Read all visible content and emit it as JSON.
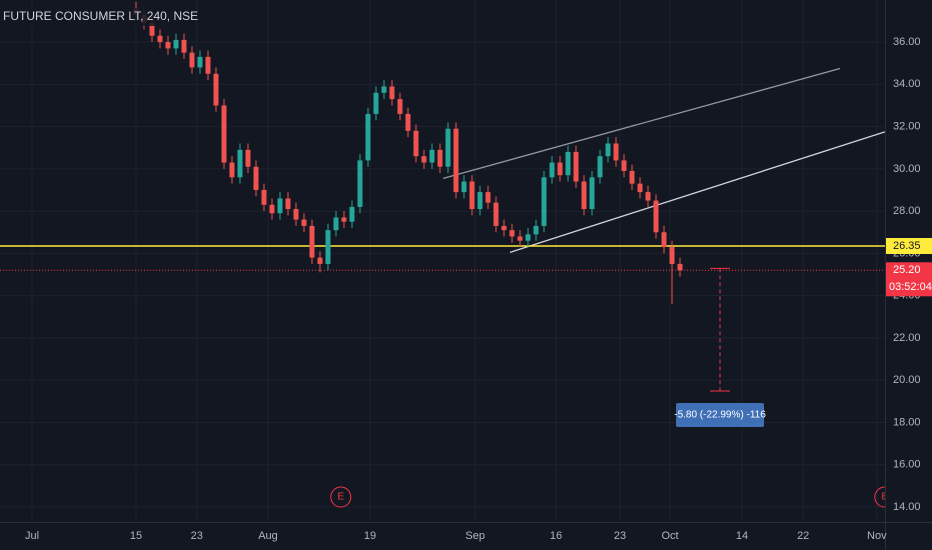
{
  "chart_data": {
    "type": "candlestick",
    "title": "FUTURE CONSUMER LT, 240, NSE",
    "x": [
      17,
      18,
      19,
      20,
      21,
      22,
      23,
      24,
      25,
      26,
      27,
      28,
      29,
      30,
      31,
      32,
      33,
      34,
      35,
      36,
      37,
      38,
      39,
      40,
      41,
      42,
      43,
      44,
      45,
      46,
      47,
      48,
      49,
      50,
      51,
      52,
      53,
      54,
      55,
      56,
      57,
      58,
      59,
      60,
      61,
      62,
      63,
      64,
      65,
      66,
      67,
      68,
      69,
      70,
      71,
      72,
      73,
      74,
      75,
      76,
      77,
      78,
      79,
      80,
      81,
      82,
      83,
      84,
      85
    ],
    "open": [
      37.6,
      37.3,
      36.9,
      36.3,
      36.0,
      35.7,
      36.1,
      35.5,
      34.8,
      35.3,
      34.5,
      33.0,
      30.3,
      29.6,
      30.9,
      30.1,
      29.0,
      28.3,
      27.9,
      28.6,
      28.1,
      27.6,
      27.3,
      25.8,
      25.5,
      27.1,
      27.7,
      27.5,
      28.2,
      30.4,
      32.6,
      33.6,
      33.9,
      33.3,
      32.6,
      31.8,
      30.6,
      30.3,
      30.9,
      30.1,
      31.9,
      28.9,
      29.4,
      28.1,
      28.9,
      28.4,
      27.3,
      27.1,
      26.8,
      26.6,
      26.9,
      27.3,
      29.6,
      30.3,
      29.7,
      30.8,
      29.4,
      28.1,
      29.6,
      30.6,
      31.2,
      30.4,
      29.9,
      29.3,
      28.9,
      28.5,
      27.0,
      26.3,
      25.5
    ],
    "high": [
      37.9,
      37.6,
      37.2,
      36.6,
      36.3,
      36.4,
      36.4,
      35.8,
      35.6,
      35.6,
      34.8,
      33.3,
      30.6,
      31.2,
      31.2,
      30.4,
      29.3,
      28.6,
      28.9,
      28.9,
      28.4,
      27.9,
      27.6,
      26.1,
      27.4,
      28.0,
      28.0,
      28.5,
      30.7,
      32.9,
      33.9,
      34.2,
      34.2,
      33.6,
      32.9,
      32.1,
      30.9,
      31.2,
      31.2,
      32.2,
      32.2,
      29.7,
      29.7,
      29.2,
      29.2,
      28.7,
      27.6,
      27.4,
      27.1,
      27.2,
      27.6,
      29.9,
      30.6,
      30.6,
      31.1,
      31.1,
      29.7,
      29.9,
      30.9,
      31.5,
      31.5,
      30.7,
      30.2,
      29.6,
      29.2,
      28.8,
      27.3,
      26.6,
      25.8
    ],
    "low": [
      37.0,
      36.6,
      36.0,
      35.7,
      35.4,
      35.4,
      35.2,
      34.5,
      34.5,
      34.2,
      32.7,
      30.0,
      29.3,
      29.3,
      29.8,
      28.7,
      28.0,
      27.6,
      27.6,
      27.8,
      27.3,
      27.0,
      25.5,
      25.1,
      25.2,
      26.8,
      27.2,
      27.2,
      27.9,
      30.1,
      32.3,
      33.3,
      33.0,
      32.3,
      31.5,
      30.3,
      30.0,
      30.0,
      29.8,
      29.8,
      28.6,
      28.6,
      27.8,
      27.8,
      28.1,
      27.0,
      26.8,
      26.5,
      26.3,
      26.3,
      26.6,
      27.0,
      29.3,
      29.4,
      29.4,
      29.1,
      27.8,
      27.8,
      29.3,
      30.3,
      30.1,
      29.6,
      29.0,
      28.6,
      28.2,
      26.7,
      26.0,
      23.6,
      24.9
    ],
    "close": [
      37.3,
      36.9,
      36.3,
      36.0,
      35.7,
      36.1,
      35.5,
      34.8,
      35.3,
      34.5,
      33.0,
      30.3,
      29.6,
      30.9,
      30.1,
      29.0,
      28.3,
      27.9,
      28.6,
      28.1,
      27.6,
      27.3,
      25.8,
      25.5,
      27.1,
      27.7,
      27.5,
      28.2,
      30.4,
      32.6,
      33.6,
      33.9,
      33.3,
      32.6,
      31.8,
      30.6,
      30.3,
      30.9,
      30.1,
      31.9,
      28.9,
      29.4,
      28.1,
      28.9,
      28.4,
      27.3,
      27.1,
      26.8,
      26.6,
      26.9,
      27.3,
      29.6,
      30.3,
      29.7,
      30.8,
      29.4,
      28.1,
      29.6,
      30.6,
      31.2,
      30.4,
      29.9,
      29.3,
      28.9,
      28.5,
      27.0,
      26.3,
      25.5,
      25.2
    ],
    "up_color": "#26a69a",
    "down_color": "#ef5350",
    "xlim": [
      0,
      110.625
    ],
    "ylim": [
      13.29,
      37.99
    ],
    "xticks": [
      {
        "value": 4,
        "label": "Jul"
      },
      {
        "value": 17,
        "label": "15"
      },
      {
        "value": 24.6,
        "label": "23"
      },
      {
        "value": 33.5,
        "label": "Aug"
      },
      {
        "value": 46.25,
        "label": "19"
      },
      {
        "value": 59.4,
        "label": "Sep"
      },
      {
        "value": 69.5,
        "label": "16"
      },
      {
        "value": 77.5,
        "label": "23"
      },
      {
        "value": 83.75,
        "label": "Oct"
      },
      {
        "value": 92.75,
        "label": "14"
      },
      {
        "value": 100.4,
        "label": "22"
      },
      {
        "value": 109.6,
        "label": "Nov"
      }
    ],
    "yticks": [
      {
        "value": 14,
        "label": "14.00"
      },
      {
        "value": 16,
        "label": "16.00"
      },
      {
        "value": 18,
        "label": "18.00"
      },
      {
        "value": 20,
        "label": "20.00"
      },
      {
        "value": 22,
        "label": "22.00"
      },
      {
        "value": 24,
        "label": "24.00"
      },
      {
        "value": 26,
        "label": "26.00"
      },
      {
        "value": 28,
        "label": "28.00"
      },
      {
        "value": 30,
        "label": "30.00"
      },
      {
        "value": 32,
        "label": "32.00"
      },
      {
        "value": 34,
        "label": "34.00"
      },
      {
        "value": 36,
        "label": "36.00"
      }
    ],
    "grid": true,
    "hlines": [
      {
        "value": 26.35,
        "label": "26.35",
        "color": "#ffeb3b"
      },
      {
        "value": 25.2,
        "label": "25.20",
        "color": "#f23645",
        "countdown": "03:52:04"
      }
    ],
    "trendlines": [
      {
        "x": [
          55.4,
          105
        ],
        "y": [
          29.55,
          34.75
        ],
        "color": "#9598a1"
      },
      {
        "x": [
          63.75,
          110.6
        ],
        "y": [
          26.05,
          31.75
        ],
        "color": "#d1d4dc"
      }
    ],
    "measure": {
      "x": 90,
      "from": 25.29,
      "to": 19.49,
      "label": "-5.80 (-22.99%) -116"
    },
    "events": [
      {
        "x": 42.6,
        "label": "E"
      },
      {
        "x": 110.6,
        "label": "E"
      }
    ]
  }
}
